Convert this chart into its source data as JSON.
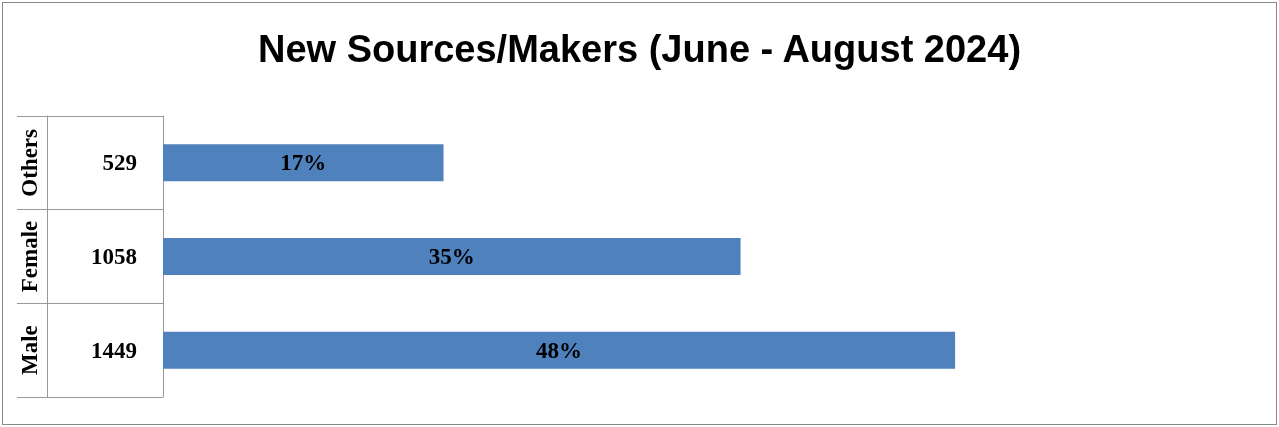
{
  "chart_data": {
    "type": "bar",
    "orientation": "horizontal",
    "title": "New Sources/Makers (June - August 2024)",
    "categories": [
      "Others",
      "Female",
      "Male"
    ],
    "values": [
      17,
      35,
      48
    ],
    "color": "#4f81bd",
    "value_labels": [
      "17%",
      "35%",
      "48%"
    ],
    "annotations": [
      "529",
      "1058",
      "1449"
    ]
  }
}
